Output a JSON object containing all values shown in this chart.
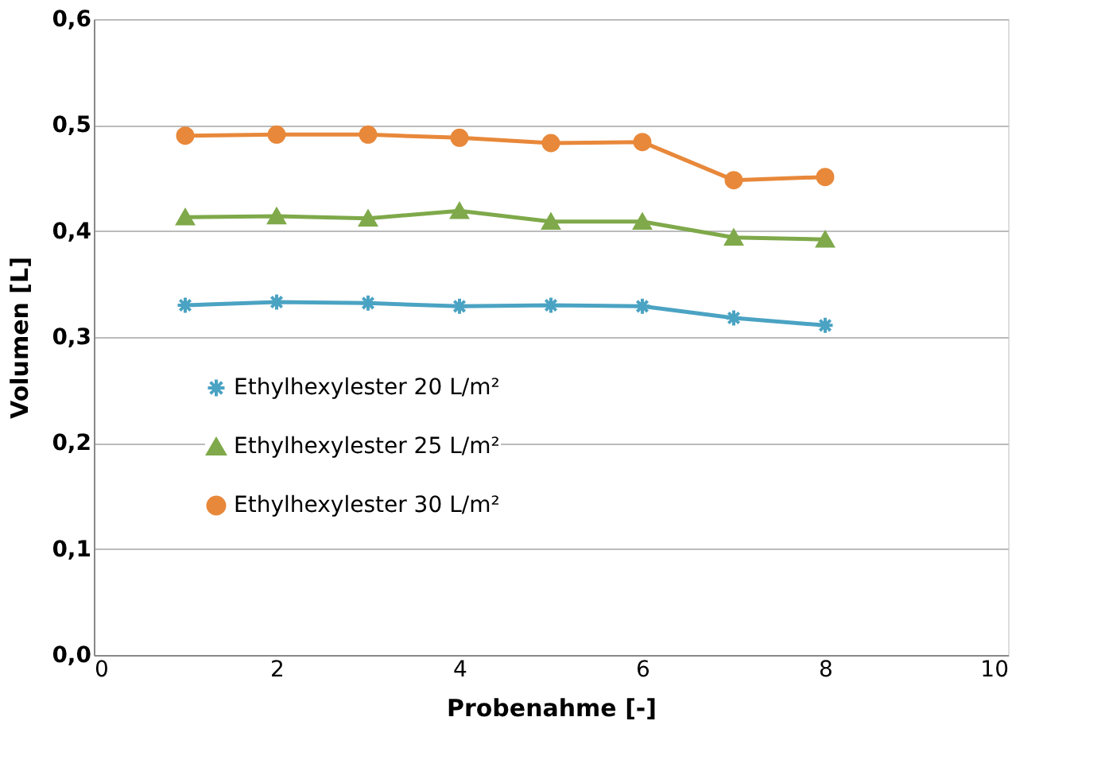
{
  "chart_data": {
    "type": "line",
    "xlabel": "Probenahme [-]",
    "ylabel": "Volumen [L]",
    "x": [
      1,
      2,
      3,
      4,
      5,
      6,
      7,
      8
    ],
    "xlim": [
      0,
      10
    ],
    "xticks": [
      0,
      2,
      4,
      6,
      8,
      10
    ],
    "ylim": [
      0,
      0.6
    ],
    "yticks": [
      {
        "value": 0,
        "label": "0,0"
      },
      {
        "value": 0.1,
        "label": "0,1"
      },
      {
        "value": 0.2,
        "label": "0,2"
      },
      {
        "value": 0.3,
        "label": "0,3"
      },
      {
        "value": 0.4,
        "label": "0,4"
      },
      {
        "value": 0.5,
        "label": "0,5"
      },
      {
        "value": 0.6,
        "label": "0,6"
      }
    ],
    "grid": "y",
    "legend": "left",
    "line_style": "solid",
    "series": [
      {
        "name": "Ethylhexylester 20 L/m²",
        "color": "#4ba3c3",
        "marker": "cross",
        "values": [
          0.33,
          0.333,
          0.332,
          0.329,
          0.33,
          0.329,
          0.318,
          0.311
        ]
      },
      {
        "name": "Ethylhexylester 25 L/m²",
        "color": "#7fa94a",
        "marker": "triangle",
        "values": [
          0.413,
          0.414,
          0.412,
          0.419,
          0.409,
          0.409,
          0.394,
          0.392
        ]
      },
      {
        "name": "Ethylhexylester 30 L/m²",
        "color": "#e8883a",
        "marker": "circle",
        "values": [
          0.49,
          0.491,
          0.491,
          0.488,
          0.483,
          0.484,
          0.448,
          0.451
        ]
      }
    ]
  }
}
